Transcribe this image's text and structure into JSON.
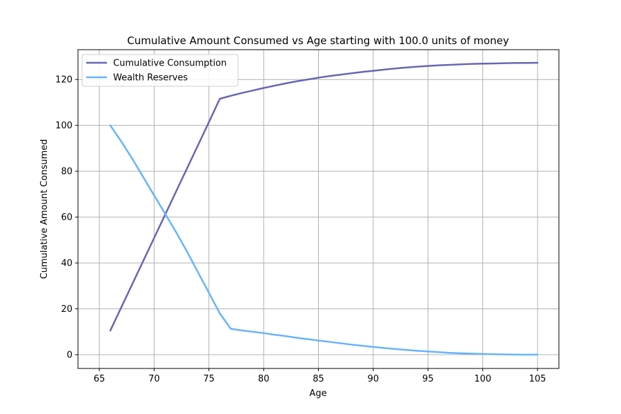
{
  "chart_data": {
    "type": "line",
    "title": "Cumulative Amount Consumed vs Age starting with 100.0 units of money",
    "xlabel": "Age",
    "ylabel": "Cumulative Amount Consumed",
    "xlim": [
      63.05,
      106.95
    ],
    "ylim": [
      -6.0,
      133.0
    ],
    "xticks": [
      65,
      70,
      75,
      80,
      85,
      90,
      95,
      100,
      105
    ],
    "yticks": [
      0,
      20,
      40,
      60,
      80,
      100,
      120
    ],
    "grid": true,
    "legend_position": "top-left",
    "series": [
      {
        "name": "Cumulative Consumption",
        "color": "#6666b3",
        "x": [
          66,
          67,
          68,
          69,
          70,
          71,
          72,
          73,
          74,
          75,
          76,
          77,
          78,
          79,
          80,
          81,
          82,
          83,
          84,
          85,
          86,
          87,
          88,
          89,
          90,
          91,
          92,
          93,
          94,
          95,
          96,
          97,
          98,
          99,
          100,
          101,
          102,
          103,
          104,
          105
        ],
        "y": [
          10.5,
          20.6,
          30.7,
          40.8,
          50.9,
          61.0,
          71.1,
          81.2,
          91.3,
          101.4,
          111.6,
          112.9,
          114.1,
          115.2,
          116.3,
          117.3,
          118.3,
          119.2,
          120.0,
          120.8,
          121.5,
          122.1,
          122.7,
          123.3,
          123.8,
          124.3,
          124.8,
          125.2,
          125.6,
          125.9,
          126.2,
          126.4,
          126.6,
          126.8,
          126.9,
          127.0,
          127.1,
          127.2,
          127.2,
          127.3
        ]
      },
      {
        "name": "Wealth Reserves",
        "color": "#66b3ff",
        "x": [
          66,
          67,
          68,
          69,
          70,
          71,
          72,
          73,
          74,
          75,
          76,
          77,
          78,
          79,
          80,
          81,
          82,
          83,
          84,
          85,
          86,
          87,
          88,
          89,
          90,
          91,
          92,
          93,
          94,
          95,
          96,
          97,
          98,
          99,
          100,
          101,
          102,
          103,
          104,
          105
        ],
        "y": [
          100.0,
          93.0,
          85.5,
          77.5,
          69.5,
          61.5,
          53.5,
          45.0,
          36.0,
          27.0,
          18.0,
          11.3,
          10.6,
          10.0,
          9.4,
          8.7,
          8.1,
          7.4,
          6.8,
          6.2,
          5.6,
          5.0,
          4.4,
          3.9,
          3.4,
          2.9,
          2.5,
          2.1,
          1.7,
          1.4,
          1.1,
          0.8,
          0.6,
          0.45,
          0.3,
          0.2,
          0.12,
          0.06,
          0.02,
          0.0
        ]
      }
    ]
  }
}
